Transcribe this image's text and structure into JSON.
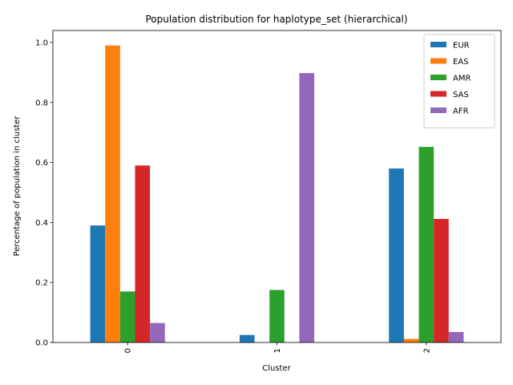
{
  "chart_data": {
    "type": "bar",
    "title": "Population distribution for haplotype_set (hierarchical)",
    "xlabel": "Cluster",
    "ylabel": "Percentage of population in cluster",
    "categories": [
      "0",
      "1",
      "2"
    ],
    "ylim": [
      0,
      1.04
    ],
    "yticks": [
      "0.0",
      "0.2",
      "0.4",
      "0.6",
      "0.8",
      "1.0"
    ],
    "legend_position": "top-right",
    "grid": false,
    "series": [
      {
        "name": "EUR",
        "color": "#1f77b4",
        "values": [
          0.39,
          0.025,
          0.58
        ]
      },
      {
        "name": "EAS",
        "color": "#ff7f0e",
        "values": [
          0.99,
          0.0,
          0.012
        ]
      },
      {
        "name": "AMR",
        "color": "#2ca02c",
        "values": [
          0.17,
          0.175,
          0.652
        ]
      },
      {
        "name": "SAS",
        "color": "#d62728",
        "values": [
          0.59,
          0.0,
          0.412
        ]
      },
      {
        "name": "AFR",
        "color": "#9467bd",
        "values": [
          0.065,
          0.898,
          0.035
        ]
      }
    ]
  }
}
